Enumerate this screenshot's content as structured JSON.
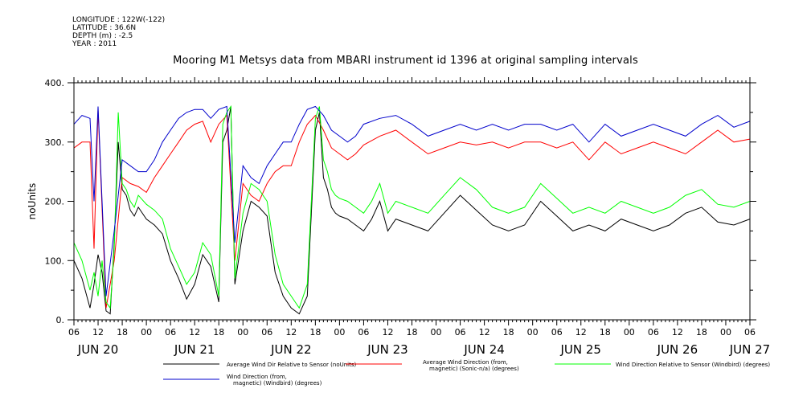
{
  "header": {
    "longitude": "LONGITUDE : 122W(-122)",
    "latitude": "LATITUDE : 36.6N",
    "depth": "DEPTH (m) : -2.5",
    "year": "YEAR : 2011"
  },
  "chart_data": {
    "type": "line",
    "title": "Mooring M1 Metsys data from MBARI instrument id 1396 at original sampling intervals",
    "ylabel": "noUnits",
    "xlabel": "",
    "ylim": [
      0,
      400
    ],
    "y_ticks": [
      "0.",
      "100.",
      "200.",
      "300.",
      "400."
    ],
    "x_range_hours": [
      0,
      168
    ],
    "x_tick_labels": [
      "06",
      "12",
      "18",
      "00",
      "06",
      "12",
      "18",
      "00",
      "06",
      "12",
      "18",
      "00",
      "06",
      "12",
      "18",
      "00",
      "06",
      "12",
      "18",
      "00",
      "06",
      "12",
      "18",
      "00",
      "06",
      "12",
      "18",
      "00",
      "06"
    ],
    "date_labels": [
      "JUN 20",
      "JUN 21",
      "JUN 22",
      "JUN 23",
      "JUN 24",
      "JUN 25",
      "JUN 26",
      "JUN 27"
    ],
    "grid": false,
    "legend_placement": "bottom",
    "x_unit_note": "x values are hours after 2011-06-20 06:00",
    "series": [
      {
        "name": "Average Wind Dir Relative to Sensor (noUnits)",
        "color": "#000000",
        "x": [
          0,
          2,
          4,
          5,
          6,
          7,
          8,
          9,
          10,
          11,
          12,
          13,
          14,
          15,
          16,
          18,
          20,
          22,
          24,
          26,
          28,
          30,
          32,
          34,
          36,
          37,
          38,
          39,
          40,
          42,
          44,
          46,
          48,
          50,
          52,
          54,
          56,
          58,
          60,
          61,
          62,
          63,
          64,
          65,
          66,
          68,
          70,
          72,
          74,
          76,
          78,
          80,
          84,
          88,
          92,
          96,
          100,
          104,
          108,
          112,
          116,
          120,
          124,
          128,
          132,
          136,
          140,
          144,
          148,
          152,
          156,
          160,
          164,
          168
        ],
        "y": [
          100,
          70,
          20,
          60,
          110,
          80,
          15,
          10,
          130,
          300,
          220,
          210,
          185,
          175,
          190,
          170,
          160,
          145,
          100,
          70,
          35,
          60,
          110,
          90,
          30,
          300,
          320,
          360,
          60,
          150,
          200,
          190,
          175,
          80,
          40,
          20,
          10,
          40,
          320,
          350,
          240,
          220,
          190,
          180,
          175,
          170,
          160,
          150,
          170,
          200,
          150,
          170,
          160,
          150,
          180,
          210,
          185,
          160,
          150,
          160,
          200,
          175,
          150,
          160,
          150,
          170,
          160,
          150,
          160,
          180,
          190,
          165,
          160,
          170
        ]
      },
      {
        "name": "Average Wind Direction (from, magnetic) (Sonic-n/a) (degrees)",
        "color": "#ff0000",
        "x": [
          0,
          2,
          4,
          5,
          6,
          8,
          10,
          12,
          14,
          16,
          18,
          20,
          22,
          24,
          26,
          28,
          30,
          32,
          34,
          36,
          38,
          40,
          42,
          44,
          46,
          48,
          50,
          52,
          54,
          56,
          58,
          60,
          62,
          64,
          66,
          68,
          70,
          72,
          76,
          80,
          84,
          88,
          92,
          96,
          100,
          104,
          108,
          112,
          116,
          120,
          124,
          128,
          132,
          136,
          140,
          144,
          148,
          152,
          156,
          160,
          164,
          168
        ],
        "y": [
          290,
          300,
          300,
          120,
          355,
          20,
          100,
          240,
          230,
          225,
          215,
          240,
          260,
          280,
          300,
          320,
          330,
          335,
          300,
          330,
          345,
          100,
          230,
          210,
          200,
          230,
          250,
          260,
          260,
          300,
          330,
          345,
          320,
          290,
          280,
          270,
          280,
          295,
          310,
          320,
          300,
          280,
          290,
          300,
          295,
          300,
          290,
          300,
          300,
          290,
          300,
          270,
          300,
          280,
          290,
          300,
          290,
          280,
          300,
          320,
          300,
          305
        ]
      },
      {
        "name": "Wind Direction Relative to Sensor (Windbird) (degrees)",
        "color": "#00ff00",
        "x": [
          0,
          2,
          4,
          5,
          6,
          7,
          8,
          9,
          10,
          11,
          12,
          13,
          14,
          15,
          16,
          18,
          20,
          22,
          24,
          26,
          28,
          30,
          32,
          34,
          36,
          37,
          38,
          39,
          40,
          42,
          44,
          46,
          48,
          50,
          52,
          54,
          56,
          58,
          60,
          61,
          62,
          63,
          64,
          65,
          66,
          68,
          70,
          72,
          74,
          76,
          78,
          80,
          84,
          88,
          92,
          96,
          100,
          104,
          108,
          112,
          116,
          120,
          124,
          128,
          132,
          136,
          140,
          144,
          148,
          152,
          156,
          160,
          164,
          168
        ],
        "y": [
          130,
          100,
          50,
          80,
          40,
          100,
          30,
          20,
          120,
          350,
          230,
          220,
          200,
          190,
          210,
          195,
          185,
          170,
          120,
          90,
          60,
          80,
          130,
          110,
          40,
          330,
          350,
          360,
          70,
          180,
          230,
          220,
          200,
          110,
          60,
          40,
          20,
          60,
          340,
          360,
          270,
          250,
          220,
          210,
          205,
          200,
          190,
          180,
          200,
          230,
          180,
          200,
          190,
          180,
          210,
          240,
          220,
          190,
          180,
          190,
          230,
          205,
          180,
          190,
          180,
          200,
          190,
          180,
          190,
          210,
          220,
          195,
          190,
          200
        ]
      },
      {
        "name": "Wind Direction (from, magnetic) (Windbird) (degrees)",
        "color": "#0000cc",
        "x": [
          0,
          2,
          4,
          5,
          6,
          8,
          10,
          12,
          14,
          16,
          18,
          20,
          22,
          24,
          26,
          28,
          30,
          32,
          34,
          36,
          38,
          40,
          42,
          44,
          46,
          48,
          50,
          52,
          54,
          56,
          58,
          60,
          62,
          64,
          66,
          68,
          70,
          72,
          76,
          80,
          84,
          88,
          92,
          96,
          100,
          104,
          108,
          112,
          116,
          120,
          124,
          128,
          132,
          136,
          140,
          144,
          148,
          152,
          156,
          160,
          164,
          168
        ],
        "y": [
          330,
          345,
          340,
          200,
          360,
          40,
          150,
          270,
          260,
          250,
          250,
          270,
          300,
          320,
          340,
          350,
          355,
          355,
          340,
          355,
          360,
          130,
          260,
          240,
          230,
          260,
          280,
          300,
          300,
          330,
          355,
          360,
          345,
          320,
          310,
          300,
          310,
          330,
          340,
          345,
          330,
          310,
          320,
          330,
          320,
          330,
          320,
          330,
          330,
          320,
          330,
          300,
          330,
          310,
          320,
          330,
          320,
          310,
          330,
          345,
          325,
          335
        ]
      }
    ]
  },
  "legend": [
    {
      "label_lines": [
        "Average Wind Dir Relative to Sensor (noUnits)"
      ],
      "color": "#000000"
    },
    {
      "label_lines": [
        "Average Wind Direction (from,",
        "magnetic) (Sonic-n/a) (degrees)"
      ],
      "color": "#ff0000"
    },
    {
      "label_lines": [
        "Wind Direction Relative to Sensor (Windbird) (degrees)"
      ],
      "color": "#00ff00"
    },
    {
      "label_lines": [
        "Wind Direction (from,",
        "magnetic) (Windbird) (degrees)"
      ],
      "color": "#0000cc"
    }
  ]
}
